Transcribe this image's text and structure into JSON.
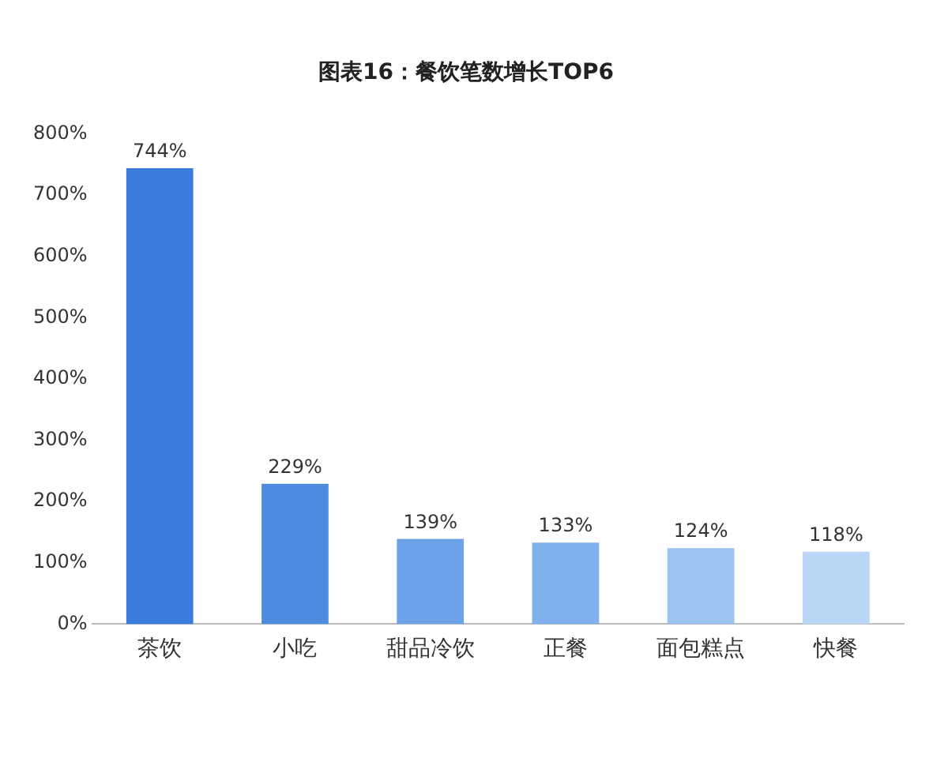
{
  "chart_data": {
    "type": "bar",
    "title": "图表16：餐饮笔数增长TOP6",
    "categories": [
      "茶饮",
      "小吃",
      "甜品冷饮",
      "正餐",
      "面包糕点",
      "快餐"
    ],
    "values": [
      744,
      229,
      139,
      133,
      124,
      118
    ],
    "colors": [
      "#3a7bdc",
      "#4d8be0",
      "#6ba2e8",
      "#80b1ec",
      "#9dc3f1",
      "#bad6f6"
    ],
    "value_labels": [
      "744%",
      "229%",
      "139%",
      "133%",
      "124%",
      "118%"
    ],
    "ylim": [
      0,
      800
    ],
    "yticks": [
      {
        "value": 0,
        "label": "0%"
      },
      {
        "value": 100,
        "label": "100%"
      },
      {
        "value": 200,
        "label": "200%"
      },
      {
        "value": 300,
        "label": "300%"
      },
      {
        "value": 400,
        "label": "400%"
      },
      {
        "value": 500,
        "label": "500%"
      },
      {
        "value": 600,
        "label": "600%"
      },
      {
        "value": 700,
        "label": "700%"
      },
      {
        "value": 800,
        "label": "800%"
      }
    ],
    "grid": false,
    "legend": false
  }
}
